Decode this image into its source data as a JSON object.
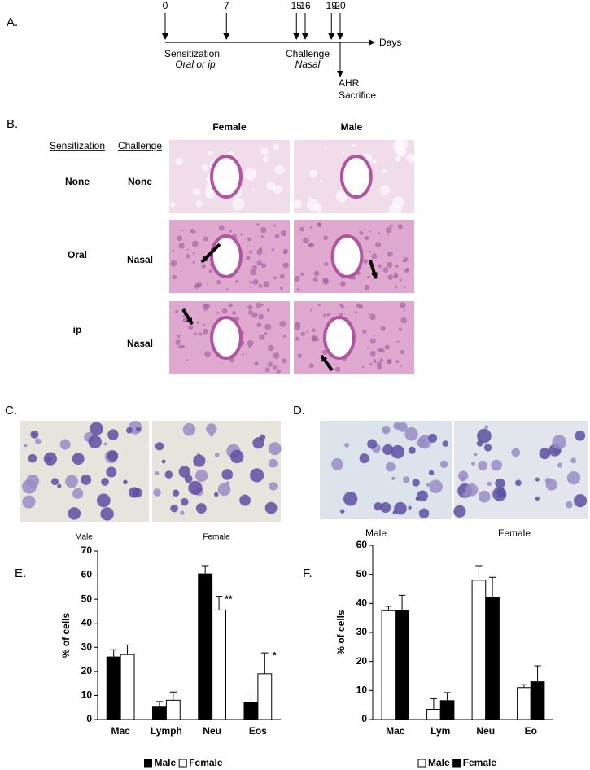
{
  "panel_a": {
    "label": "A.",
    "days": [
      0,
      7,
      15,
      16,
      19,
      20
    ],
    "axis_label": "Days",
    "sensitization": "Sensitization",
    "sensitization_route": "Oral or ip",
    "challenge": "Challenge",
    "challenge_route": "Nasal",
    "outcome_1": "AHR",
    "outcome_2": "Sacrifice"
  },
  "panel_b": {
    "label": "B.",
    "columns": [
      "Female",
      "Male"
    ],
    "row_headers": [
      "Sensitization",
      "Challenge"
    ],
    "rows": [
      [
        "None",
        "None"
      ],
      [
        "Oral",
        "Nasal"
      ],
      [
        "ip",
        "Nasal"
      ]
    ]
  },
  "panel_c": {
    "label": "C.",
    "captions": [
      "Male",
      "Female"
    ]
  },
  "panel_d": {
    "label": "D.",
    "captions": [
      "Male",
      "Female"
    ]
  },
  "chart_data": [
    {
      "type": "bar",
      "panel_label": "E.",
      "y_label": "% of cells",
      "categories": [
        "Mac",
        "Lymph",
        "Neu",
        "Eos"
      ],
      "series": [
        {
          "name": "Male",
          "color": "#000000",
          "values": [
            26,
            5.5,
            60.5,
            7
          ],
          "errors": [
            3,
            2,
            3.4,
            4
          ]
        },
        {
          "name": "Female",
          "color": "#ffffff",
          "values": [
            27,
            8,
            45.5,
            19
          ],
          "errors": [
            4,
            3.4,
            5.7,
            8.7
          ],
          "significance": [
            null,
            null,
            "**",
            "*"
          ]
        }
      ],
      "ylim": [
        0,
        70
      ],
      "yticks": [
        0,
        10,
        20,
        30,
        40,
        50,
        60,
        70
      ],
      "legend": "bottom"
    },
    {
      "type": "bar",
      "panel_label": "F.",
      "y_label": "% of cells",
      "categories": [
        "Mac",
        "Lym",
        "Neu",
        "Eo"
      ],
      "series": [
        {
          "name": "Male",
          "color": "#ffffff",
          "values": [
            37.5,
            3.5,
            48,
            11
          ],
          "errors": [
            1.5,
            3.7,
            5,
            1
          ]
        },
        {
          "name": "Female",
          "color": "#000000",
          "values": [
            37.5,
            6.5,
            42,
            13
          ],
          "errors": [
            5.3,
            2.8,
            7,
            5.5
          ]
        }
      ],
      "ylim": [
        0,
        60
      ],
      "yticks": [
        0,
        10,
        20,
        30,
        40,
        50,
        60
      ],
      "legend": "bottom"
    }
  ]
}
